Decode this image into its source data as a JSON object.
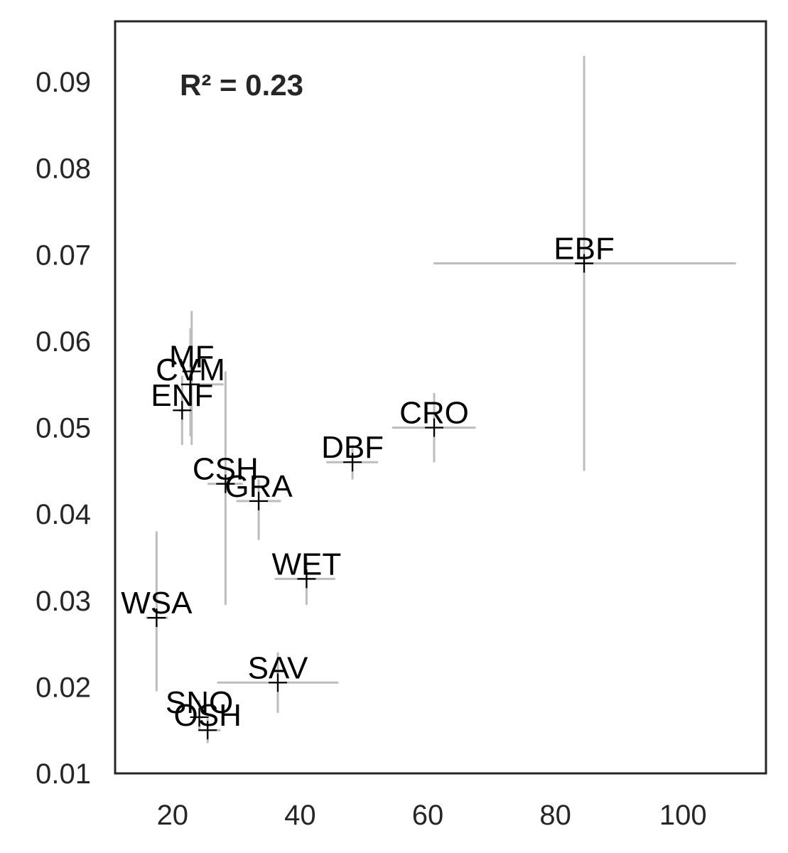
{
  "chart_data": {
    "type": "scatter",
    "title": "",
    "xlabel": "",
    "ylabel": "",
    "annotation": "R² = 0.23",
    "xlim": [
      11,
      113
    ],
    "ylim": [
      0.01,
      0.097
    ],
    "xticks": [
      20,
      40,
      60,
      80,
      100
    ],
    "xtick_labels": [
      "20",
      "40",
      "60",
      "80",
      "100"
    ],
    "yticks": [
      0.01,
      0.02,
      0.03,
      0.04,
      0.05,
      0.06,
      0.07,
      0.08,
      0.09
    ],
    "ytick_labels": [
      "0.01",
      "0.02",
      "0.03",
      "0.04",
      "0.05",
      "0.06",
      "0.07",
      "0.08",
      "0.09"
    ],
    "grid": false,
    "colors": {
      "errorbar": "#bdbdbd",
      "marker": "#000000",
      "axis": "#262626"
    },
    "points": [
      {
        "label": "EBF",
        "x": 84.5,
        "y": 0.069,
        "xerr": [
          60.9,
          108.3
        ],
        "yerr": [
          0.045,
          0.093
        ]
      },
      {
        "label": "CRO",
        "x": 61.0,
        "y": 0.05,
        "xerr": [
          54.4,
          67.5
        ],
        "yerr": [
          0.046,
          0.054
        ]
      },
      {
        "label": "DBF",
        "x": 48.2,
        "y": 0.046,
        "xerr": [
          44.1,
          52.2
        ],
        "yerr": [
          0.044,
          0.048
        ]
      },
      {
        "label": "MF",
        "x": 23.0,
        "y": 0.0565,
        "xerr": [
          22.5,
          23.5
        ],
        "yerr": [
          0.048,
          0.0635
        ]
      },
      {
        "label": "CVM",
        "x": 22.8,
        "y": 0.055,
        "xerr": [
          22.0,
          28.0
        ],
        "yerr": [
          0.049,
          0.0615
        ]
      },
      {
        "label": "ENF",
        "x": 21.5,
        "y": 0.052,
        "xerr": [
          21.0,
          22.0
        ],
        "yerr": [
          0.048,
          0.056
        ]
      },
      {
        "label": "CSH",
        "x": 28.3,
        "y": 0.0435,
        "xerr": [
          25.5,
          31.0
        ],
        "yerr": [
          0.0295,
          0.0565
        ]
      },
      {
        "label": "GRA",
        "x": 33.5,
        "y": 0.0415,
        "xerr": [
          30.0,
          37.0
        ],
        "yerr": [
          0.037,
          0.044
        ]
      },
      {
        "label": "WET",
        "x": 41.0,
        "y": 0.0325,
        "xerr": [
          36.0,
          45.5
        ],
        "yerr": [
          0.0295,
          0.035
        ]
      },
      {
        "label": "WSA",
        "x": 17.5,
        "y": 0.028,
        "xerr": [
          15.8,
          19.3
        ],
        "yerr": [
          0.0195,
          0.038
        ]
      },
      {
        "label": "SAV",
        "x": 36.5,
        "y": 0.0205,
        "xerr": [
          27.0,
          46.0
        ],
        "yerr": [
          0.017,
          0.024
        ]
      },
      {
        "label": "SNO",
        "x": 24.2,
        "y": 0.0165,
        "xerr": [
          23.5,
          25.0
        ],
        "yerr": [
          0.015,
          0.0185
        ]
      },
      {
        "label": "OSH",
        "x": 25.5,
        "y": 0.015,
        "xerr": [
          24.0,
          27.5
        ],
        "yerr": [
          0.0135,
          0.0165
        ]
      }
    ]
  }
}
